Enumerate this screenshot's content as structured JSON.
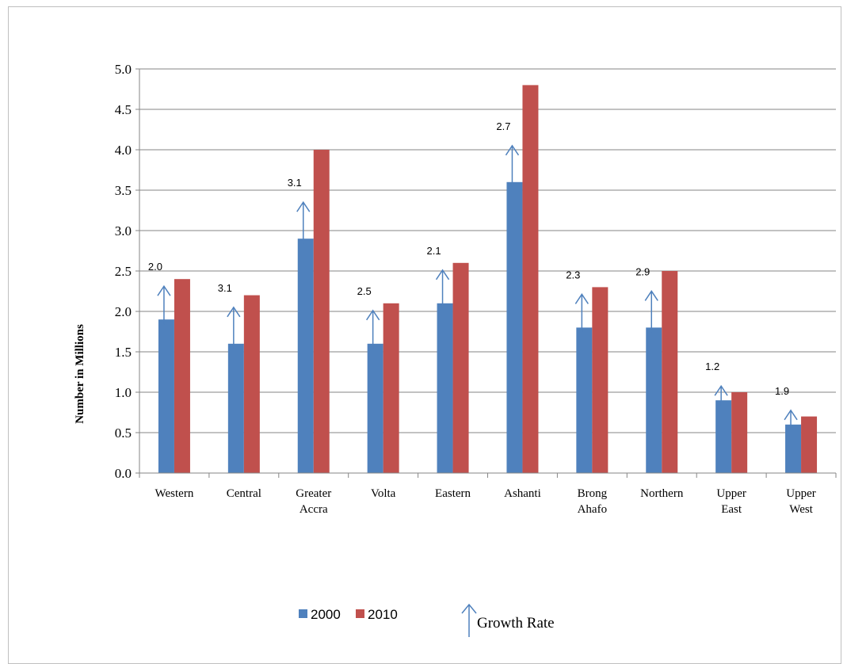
{
  "chart_data": {
    "type": "bar",
    "categories": [
      [
        "Western"
      ],
      [
        "Central"
      ],
      [
        "Greater",
        "Accra"
      ],
      [
        "Volta"
      ],
      [
        "Eastern"
      ],
      [
        "Ashanti"
      ],
      [
        "Brong",
        "Ahafo"
      ],
      [
        "Northern"
      ],
      [
        "Upper",
        "East"
      ],
      [
        "Upper",
        "West"
      ]
    ],
    "series": [
      {
        "name": "2000",
        "color": "#4f81bd",
        "values": [
          1.9,
          1.6,
          2.9,
          1.6,
          2.1,
          3.6,
          1.8,
          1.8,
          0.9,
          0.6
        ]
      },
      {
        "name": "2010",
        "color": "#c0504d",
        "values": [
          2.4,
          2.2,
          4.0,
          2.1,
          2.6,
          4.8,
          2.3,
          2.5,
          1.0,
          0.7
        ]
      }
    ],
    "growth_rates": [
      "2.0",
      "3.1",
      "3.1",
      "2.5",
      "2.1",
      "2.7",
      "2.3",
      "2.9",
      "1.2",
      "1.9"
    ],
    "growth_rate_color": "#4f81bd",
    "ylabel": "Number in Millions",
    "ylim": [
      0,
      5.0
    ],
    "yticks": [
      "0.0",
      "0.5",
      "1.0",
      "1.5",
      "2.0",
      "2.5",
      "3.0",
      "3.5",
      "4.0",
      "4.5",
      "5.0"
    ],
    "grid": true,
    "legend": {
      "placement": "bottom",
      "growth_label": "Growth Rate"
    }
  }
}
